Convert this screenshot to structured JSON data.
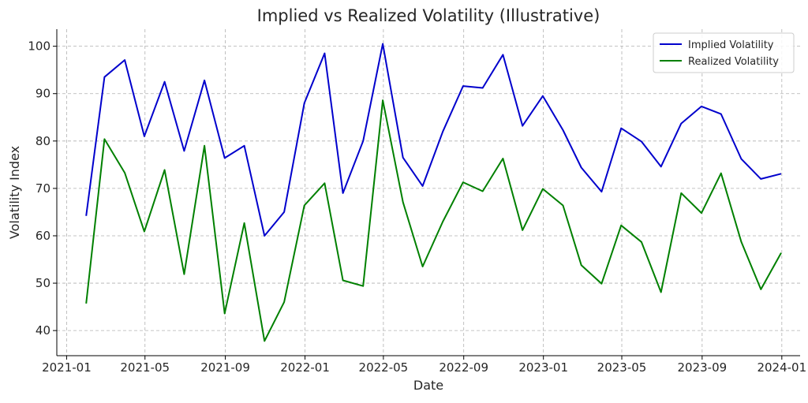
{
  "chart_data": {
    "type": "line",
    "title": "Implied vs Realized Volatility (Illustrative)",
    "xlabel": "Date",
    "ylabel": "Volatility Index",
    "x": [
      "2021-01-31",
      "2021-02-28",
      "2021-03-31",
      "2021-04-30",
      "2021-05-31",
      "2021-06-30",
      "2021-07-31",
      "2021-08-31",
      "2021-09-30",
      "2021-10-31",
      "2021-11-30",
      "2021-12-31",
      "2022-01-31",
      "2022-02-28",
      "2022-03-31",
      "2022-04-30",
      "2022-05-31",
      "2022-06-30",
      "2022-07-31",
      "2022-08-31",
      "2022-09-30",
      "2022-10-31",
      "2022-11-30",
      "2022-12-31",
      "2023-01-31",
      "2023-02-28",
      "2023-03-31",
      "2023-04-30",
      "2023-05-31",
      "2023-06-30",
      "2023-07-31",
      "2023-08-31",
      "2023-09-30",
      "2023-10-31",
      "2023-11-30",
      "2023-12-31"
    ],
    "series": [
      {
        "name": "Implied Volatility",
        "color": "#0000cc",
        "values": [
          64.2,
          93.5,
          97.1,
          81.0,
          92.5,
          77.9,
          92.8,
          76.4,
          79.0,
          60.0,
          65.0,
          88.0,
          98.5,
          69.0,
          80.0,
          100.5,
          76.5,
          70.5,
          82.0,
          91.6,
          91.2,
          98.2,
          83.2,
          89.5,
          82.3,
          74.4,
          69.3,
          82.7,
          79.9,
          74.6,
          83.7,
          87.3,
          85.7,
          76.2,
          72.0,
          73.1
        ]
      },
      {
        "name": "Realized Volatility",
        "color": "#008000",
        "values": [
          45.7,
          80.4,
          73.3,
          60.9,
          73.9,
          51.9,
          79.0,
          43.6,
          62.7,
          37.8,
          46.0,
          66.4,
          71.1,
          50.6,
          49.4,
          88.6,
          67.1,
          53.5,
          63.0,
          71.3,
          69.4,
          76.3,
          61.2,
          69.9,
          66.4,
          53.8,
          49.9,
          62.2,
          58.7,
          48.1,
          69.0,
          64.8,
          73.2,
          58.7,
          48.7,
          56.4
        ]
      }
    ],
    "xlim": [
      "2020-12-17",
      "2024-01-29"
    ],
    "ylim": [
      34.7,
      103.6
    ],
    "yticks": [
      40,
      50,
      60,
      70,
      80,
      90,
      100
    ],
    "xticks": [
      {
        "date": "2021-01-01",
        "label": "2021-01"
      },
      {
        "date": "2021-05-01",
        "label": "2021-05"
      },
      {
        "date": "2021-09-01",
        "label": "2021-09"
      },
      {
        "date": "2022-01-01",
        "label": "2022-01"
      },
      {
        "date": "2022-05-01",
        "label": "2022-05"
      },
      {
        "date": "2022-09-01",
        "label": "2022-09"
      },
      {
        "date": "2023-01-01",
        "label": "2023-01"
      },
      {
        "date": "2023-05-01",
        "label": "2023-05"
      },
      {
        "date": "2023-09-01",
        "label": "2023-09"
      },
      {
        "date": "2024-01-01",
        "label": "2024-01"
      }
    ],
    "grid": true,
    "legend": "top-right"
  }
}
